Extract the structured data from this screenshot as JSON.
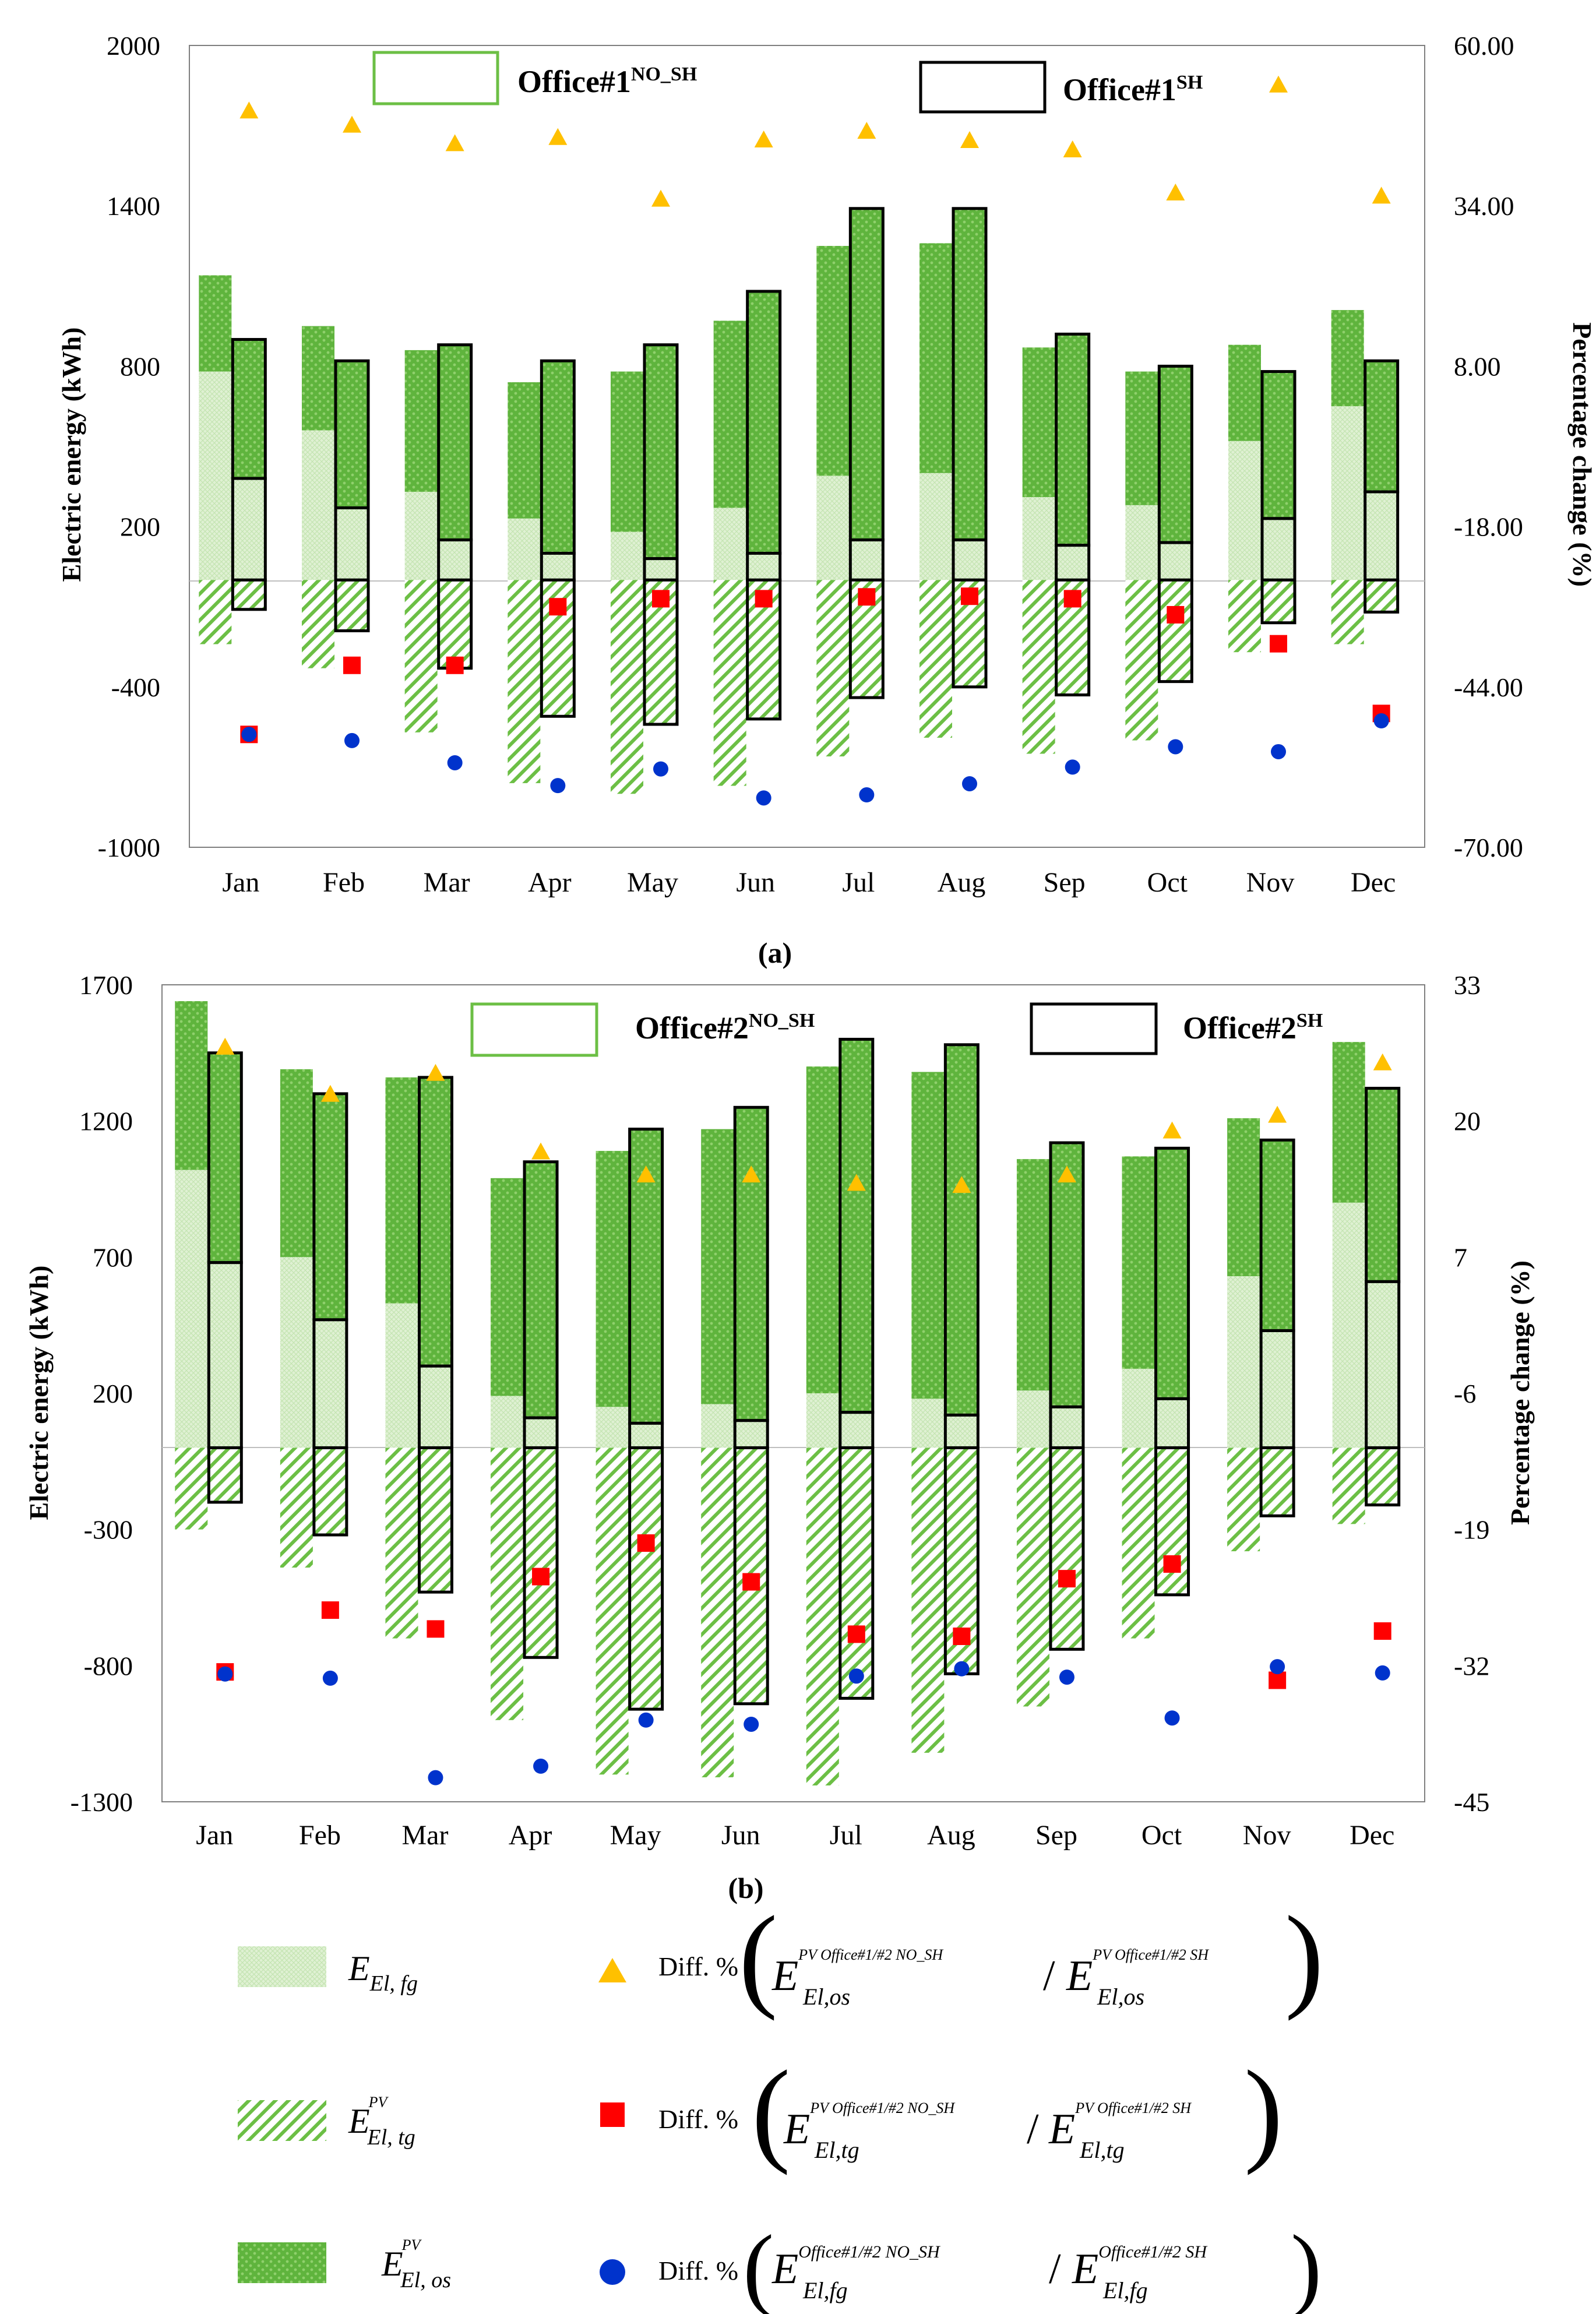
{
  "chart_data": [
    {
      "panel": "(a)",
      "type": "bar",
      "categories": [
        "Jan",
        "Feb",
        "Mar",
        "Apr",
        "May",
        "Jun",
        "Jul",
        "Aug",
        "Sep",
        "Oct",
        "Nov",
        "Dec"
      ],
      "ylabel": "Electric energy (kWh)",
      "y2label": "Percentage change (%)",
      "ylim": [
        -1000,
        2000
      ],
      "y2lim": [
        -70,
        60
      ],
      "yticks": [
        "2000",
        "1400",
        "800",
        "200",
        "-400",
        "-1000"
      ],
      "y2ticks": [
        "60.00",
        "34.00",
        "8.00",
        "-18.00",
        "-44.00",
        "-70.00"
      ],
      "legend_no_sh": {
        "name": "Office#1",
        "sup": "NO_SH"
      },
      "legend_sh": {
        "name": "Office#1",
        "sup": "SH"
      },
      "series": [
        {
          "name": "E_El,fg NO_SH",
          "values": [
            780,
            560,
            330,
            230,
            180,
            270,
            390,
            400,
            310,
            280,
            520,
            650
          ]
        },
        {
          "name": "E_El,os NO_SH",
          "values": [
            1140,
            950,
            860,
            740,
            780,
            970,
            1250,
            1260,
            870,
            780,
            880,
            1010
          ]
        },
        {
          "name": "E_El,tg NO_SH",
          "values": [
            -240,
            -330,
            -570,
            -760,
            -800,
            -770,
            -660,
            -590,
            -650,
            -600,
            -270,
            -240
          ]
        },
        {
          "name": "E_El,fg SH",
          "values": [
            380,
            270,
            150,
            100,
            80,
            100,
            150,
            150,
            130,
            140,
            230,
            330
          ]
        },
        {
          "name": "E_El,os SH",
          "values": [
            900,
            820,
            880,
            820,
            880,
            1080,
            1390,
            1390,
            920,
            800,
            780,
            820
          ]
        },
        {
          "name": "E_El,tg SH",
          "values": [
            -110,
            -190,
            -330,
            -510,
            -540,
            -520,
            -440,
            -400,
            -430,
            -380,
            -160,
            -120
          ]
        }
      ],
      "pct_os": [
        49.3,
        47.0,
        44.0,
        45.0,
        35.0,
        44.6,
        46.0,
        44.5,
        43.0,
        36.0,
        53.5,
        35.5
      ],
      "pct_tg": [
        -51.7,
        -40.5,
        -40.5,
        -31.0,
        -29.7,
        -29.7,
        -29.4,
        -29.3,
        -29.7,
        -32.3,
        -37.0,
        -48.3
      ],
      "pct_fg": [
        -51.7,
        -52.7,
        -56.3,
        -60.0,
        -57.3,
        -62.0,
        -61.5,
        -59.7,
        -57.0,
        -53.7,
        -54.5,
        -49.5
      ]
    },
    {
      "panel": "(b)",
      "type": "bar",
      "categories": [
        "Jan",
        "Feb",
        "Mar",
        "Apr",
        "May",
        "Jun",
        "Jul",
        "Aug",
        "Sep",
        "Oct",
        "Nov",
        "Dec"
      ],
      "ylabel": "Electric energy (kWh)",
      "y2label": "Percentage change (%)",
      "ylim": [
        -1300,
        1700
      ],
      "y2lim": [
        -45,
        33
      ],
      "yticks": [
        "1700",
        "1200",
        "700",
        "200",
        "-300",
        "-800",
        "-1300"
      ],
      "y2ticks": [
        "33",
        "20",
        "7",
        "-6",
        "-19",
        "-32",
        "-45"
      ],
      "legend_no_sh": {
        "name": "Office#2",
        "sup": "NO_SH"
      },
      "legend_sh": {
        "name": "Office#2",
        "sup": "SH"
      },
      "series": [
        {
          "name": "E_El,fg NO_SH",
          "values": [
            1020,
            700,
            530,
            190,
            150,
            160,
            200,
            180,
            210,
            290,
            630,
            900
          ]
        },
        {
          "name": "E_El,os NO_SH",
          "values": [
            1640,
            1390,
            1360,
            990,
            1090,
            1170,
            1400,
            1380,
            1060,
            1070,
            1210,
            1490
          ]
        },
        {
          "name": "E_El,tg NO_SH",
          "values": [
            -300,
            -440,
            -700,
            -1000,
            -1200,
            -1210,
            -1240,
            -1120,
            -950,
            -700,
            -380,
            -280
          ]
        },
        {
          "name": "E_El,fg SH",
          "values": [
            680,
            470,
            300,
            110,
            90,
            100,
            130,
            120,
            150,
            180,
            430,
            610
          ]
        },
        {
          "name": "E_El,os SH",
          "values": [
            1450,
            1300,
            1360,
            1050,
            1170,
            1250,
            1500,
            1480,
            1120,
            1100,
            1130,
            1320
          ]
        },
        {
          "name": "E_El,tg SH",
          "values": [
            -200,
            -320,
            -530,
            -770,
            -960,
            -940,
            -920,
            -830,
            -740,
            -540,
            -250,
            -210
          ]
        }
      ],
      "pct_os": [
        27.0,
        22.5,
        24.5,
        17.0,
        14.8,
        14.8,
        14.0,
        13.8,
        14.8,
        19.0,
        20.5,
        25.5
      ],
      "pct_tg": [
        -32.6,
        -26.7,
        -28.5,
        -23.5,
        -20.3,
        -24.0,
        -29.0,
        -29.2,
        -23.7,
        -22.3,
        -33.4,
        -28.7
      ],
      "pct_fg": [
        -32.8,
        -33.2,
        -42.7,
        -41.6,
        -37.2,
        -37.6,
        -33.0,
        -32.3,
        -33.1,
        -37.0,
        -32.1,
        -32.7
      ]
    }
  ],
  "panel_a_caption": "(a)",
  "panel_b_caption": "(b)",
  "legend": {
    "fg_label": "E",
    "fg_sub": "El, fg",
    "tg_label": "E",
    "tg_sup": "PV",
    "tg_sub": "El, tg",
    "os_label": "E",
    "os_sup": "PV",
    "os_sub": "El, os",
    "diff_prefix": "Diff. %",
    "triangle_num": "E",
    "triangle_num_sup": "PV Office#1/#2 NO_SH",
    "triangle_num_sub": "El,os",
    "triangle_den": "E",
    "triangle_den_sup": "PV Office#1/#2 SH",
    "triangle_den_sub": "El,os",
    "square_num": "E",
    "square_num_sup": "PV Office#1/#2 NO_SH",
    "square_num_sub": "El,tg",
    "square_den": "E",
    "square_den_sup": "PV Office#1/#2 SH",
    "square_den_sub": "El,tg",
    "circle_num": "E",
    "circle_num_sup": "Office#1/#2 NO_SH",
    "circle_num_sub": "El,fg",
    "circle_den": "E",
    "circle_den_sup": "Office#1/#2 SH",
    "circle_den_sub": "El,fg",
    "slash": "/"
  },
  "colors": {
    "green_os": "#5fb43d",
    "green_fg": "#d9efcd",
    "green_edge": "#6cbf45",
    "triangle": "#ffc000",
    "square": "#ff0000",
    "circle": "#0033cc"
  }
}
